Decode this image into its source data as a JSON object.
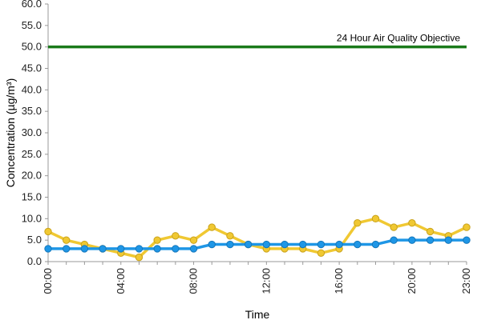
{
  "chart_data": {
    "type": "line",
    "title": "",
    "xlabel": "Time",
    "ylabel": "Concentration (µg/m³)",
    "ylim": [
      0,
      60
    ],
    "yticks": [
      "0.0",
      "5.0",
      "10.0",
      "15.0",
      "20.0",
      "25.0",
      "30.0",
      "35.0",
      "40.0",
      "45.0",
      "50.0",
      "55.0",
      "60.0"
    ],
    "x": [
      0,
      1,
      2,
      3,
      4,
      5,
      6,
      7,
      8,
      9,
      10,
      11,
      12,
      13,
      14,
      15,
      16,
      17,
      18,
      19,
      20,
      21,
      22,
      23
    ],
    "xticks": [
      {
        "x": 0,
        "label": "00:00"
      },
      {
        "x": 4,
        "label": "04:00"
      },
      {
        "x": 8,
        "label": "08:00"
      },
      {
        "x": 12,
        "label": "12:00"
      },
      {
        "x": 16,
        "label": "16:00"
      },
      {
        "x": 20,
        "label": "20:00"
      },
      {
        "x": 23,
        "label": "23:00"
      }
    ],
    "grid": false,
    "series": [
      {
        "color": "#f0c832",
        "values": [
          7,
          5,
          4,
          3,
          2,
          1,
          5,
          6,
          5,
          8,
          6,
          4,
          3,
          3,
          3,
          2,
          3,
          9,
          10,
          8,
          9,
          7,
          6,
          8
        ]
      },
      {
        "color": "#1e96e6",
        "values": [
          3,
          3,
          3,
          3,
          3,
          3,
          3,
          3,
          3,
          4,
          4,
          4,
          4,
          4,
          4,
          4,
          4,
          4,
          4,
          5,
          5,
          5,
          5,
          5
        ]
      }
    ],
    "reference_line": {
      "value": 50,
      "label": "24 Hour Air Quality Objective",
      "color": "#1a7a1a"
    }
  }
}
